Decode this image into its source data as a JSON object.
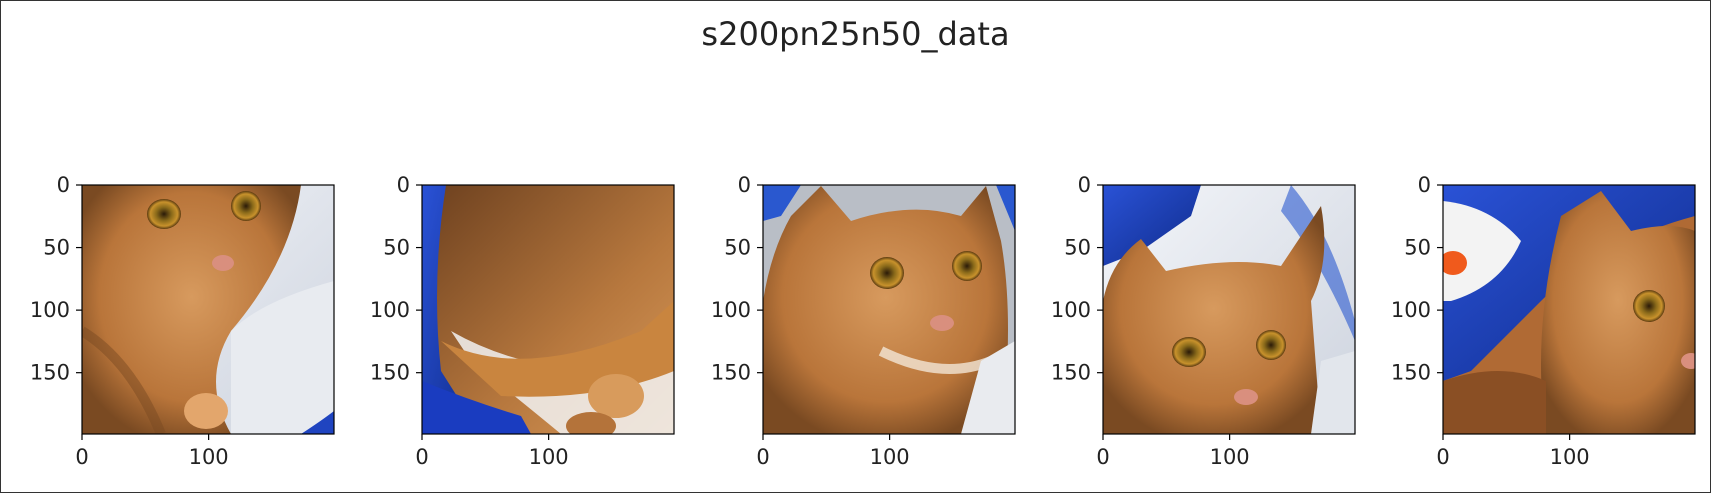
{
  "figure": {
    "title": "s200pn25n50_data"
  },
  "chart_data": [
    {
      "type": "image",
      "title": "",
      "content": "orange tabby cat face close-up, upper-left crop, light fabric on the right, blue fabric at bottom-right corner",
      "xlim": [
        0,
        199
      ],
      "ylim": [
        199,
        0
      ],
      "xticks": [
        0,
        100
      ],
      "yticks": [
        0,
        50,
        100,
        150
      ],
      "xticklabels": [
        "0",
        "100"
      ],
      "yticklabels": [
        "0",
        "50",
        "100",
        "150"
      ]
    },
    {
      "type": "image",
      "title": "",
      "content": "orange cat fur and paw, blue fabric along the left and bottom edges",
      "xlim": [
        0,
        199
      ],
      "ylim": [
        199,
        0
      ],
      "xticks": [
        0,
        100
      ],
      "yticks": [
        0,
        50,
        100,
        150
      ],
      "xticklabels": [
        "0",
        "100"
      ],
      "yticklabels": [
        "0",
        "50",
        "100",
        "150"
      ]
    },
    {
      "type": "image",
      "title": "",
      "content": "orange tabby cat face centered, grey and blue fabric background",
      "xlim": [
        0,
        199
      ],
      "ylim": [
        199,
        0
      ],
      "xticks": [
        0,
        100
      ],
      "yticks": [
        0,
        50,
        100,
        150
      ],
      "xticklabels": [
        "0",
        "100"
      ],
      "yticklabels": [
        "0",
        "50",
        "100",
        "150"
      ]
    },
    {
      "type": "image",
      "title": "",
      "content": "orange tabby cat face lower in frame, blue and white fabric above",
      "xlim": [
        0,
        199
      ],
      "ylim": [
        199,
        0
      ],
      "xticks": [
        0,
        100
      ],
      "yticks": [
        0,
        50,
        100,
        150
      ],
      "xticklabels": [
        "0",
        "100"
      ],
      "yticklabels": [
        "0",
        "50",
        "100",
        "150"
      ]
    },
    {
      "type": "image",
      "title": "",
      "content": "orange cat face partially visible on right, blue bag with orange and white pattern on left",
      "xlim": [
        0,
        199
      ],
      "ylim": [
        199,
        0
      ],
      "xticks": [
        0,
        100
      ],
      "yticks": [
        0,
        50,
        100,
        150
      ],
      "xticklabels": [
        "0",
        "100"
      ],
      "yticklabels": [
        "0",
        "50",
        "100",
        "150"
      ]
    }
  ]
}
